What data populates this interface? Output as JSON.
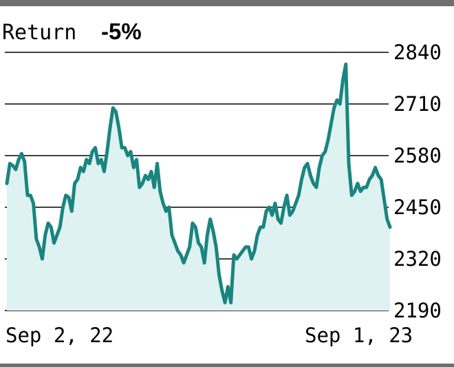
{
  "chart_data": {
    "type": "area",
    "title": "Return",
    "title_value": "-5%",
    "xlabel": "",
    "ylabel": "",
    "x_start_label": "Sep 2, 22",
    "x_end_label": "Sep 1, 23",
    "y_ticks": [
      2190,
      2320,
      2450,
      2580,
      2710,
      2840
    ],
    "ylim": [
      2190,
      2840
    ],
    "y_axis_side": "right",
    "grid": "horizontal",
    "colors": {
      "line": "#1a8580",
      "fill": "#dff2f2",
      "grid": "#000000",
      "frame": "#6f6f6f"
    },
    "series": [
      {
        "values": [
          2510,
          2560,
          2555,
          2545,
          2570,
          2585,
          2565,
          2480,
          2480,
          2460,
          2370,
          2350,
          2320,
          2380,
          2410,
          2400,
          2360,
          2380,
          2400,
          2450,
          2480,
          2475,
          2440,
          2510,
          2520,
          2550,
          2540,
          2570,
          2560,
          2590,
          2600,
          2560,
          2570,
          2540,
          2590,
          2650,
          2700,
          2690,
          2650,
          2600,
          2600,
          2580,
          2590,
          2550,
          2570,
          2500,
          2510,
          2530,
          2520,
          2540,
          2500,
          2560,
          2490,
          2460,
          2440,
          2450,
          2380,
          2360,
          2340,
          2330,
          2310,
          2330,
          2350,
          2410,
          2400,
          2360,
          2350,
          2310,
          2380,
          2420,
          2390,
          2350,
          2280,
          2240,
          2210,
          2250,
          2210,
          2330,
          2320,
          2330,
          2340,
          2350,
          2350,
          2320,
          2340,
          2380,
          2400,
          2400,
          2440,
          2450,
          2430,
          2460,
          2420,
          2410,
          2450,
          2480,
          2430,
          2440,
          2460,
          2480,
          2520,
          2550,
          2560,
          2530,
          2510,
          2500,
          2550,
          2580,
          2590,
          2620,
          2660,
          2700,
          2720,
          2710,
          2770,
          2810,
          2560,
          2480,
          2490,
          2510,
          2490,
          2500,
          2500,
          2520,
          2530,
          2550,
          2530,
          2520,
          2470,
          2420,
          2400
        ]
      }
    ]
  }
}
